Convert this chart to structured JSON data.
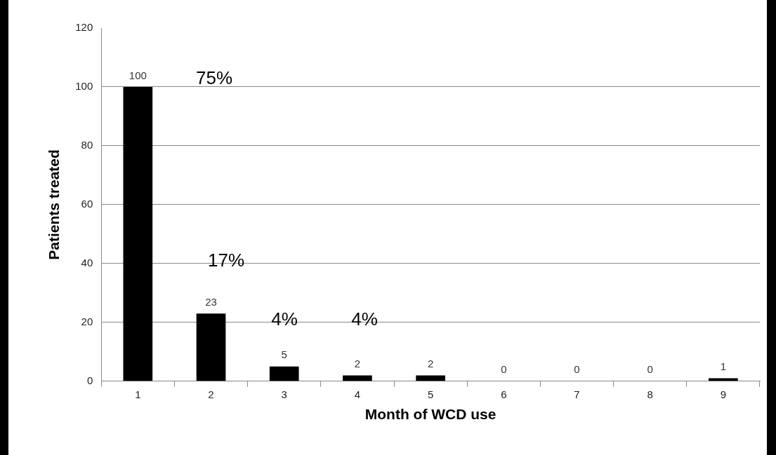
{
  "chart_data": {
    "type": "bar",
    "xlabel": "Month of WCD use",
    "ylabel": "Patients treated",
    "categories": [
      "1",
      "2",
      "3",
      "4",
      "5",
      "6",
      "7",
      "8",
      "9"
    ],
    "values": [
      100,
      23,
      5,
      2,
      2,
      0,
      0,
      0,
      1
    ],
    "color": "#000000",
    "ylim": [
      0,
      120
    ],
    "yticks": [
      0,
      20,
      40,
      60,
      80,
      100,
      120
    ],
    "grid": "y",
    "legend": false,
    "data_labels": true,
    "annotations": [
      "75%",
      "17%",
      "4%",
      "4%"
    ]
  }
}
